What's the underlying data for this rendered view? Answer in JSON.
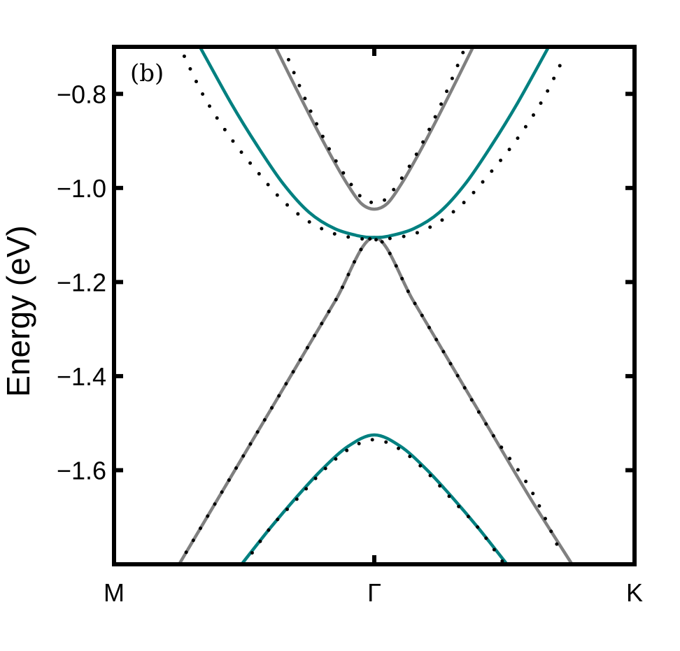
{
  "chart_data": {
    "type": "line",
    "panel_label": "(b)",
    "xlabel": "",
    "ylabel": "Energy (eV)",
    "xlim": [
      -1,
      1
    ],
    "ylim": [
      -1.8,
      -0.7
    ],
    "grid": false,
    "x_ticks": [
      {
        "x": -1,
        "label": "M"
      },
      {
        "x": 0,
        "label": "Γ"
      },
      {
        "x": 1,
        "label": "K"
      }
    ],
    "y_ticks": [
      {
        "y": -0.8,
        "label": "−0.8"
      },
      {
        "y": -1.0,
        "label": "−1.0"
      },
      {
        "y": -1.2,
        "label": "−1.2"
      },
      {
        "y": -1.4,
        "label": "−1.4"
      },
      {
        "y": -1.6,
        "label": "−1.6"
      }
    ],
    "series": [
      {
        "style": "solid",
        "color": "#808080",
        "x": [
          -0.75,
          -0.6,
          -0.45,
          -0.3,
          -0.15,
          0.0,
          0.15,
          0.3,
          0.45,
          0.6,
          0.76
        ],
        "y": [
          -1.8,
          -1.66,
          -1.52,
          -1.38,
          -1.24,
          -1.105,
          -1.24,
          -1.38,
          -1.52,
          -1.66,
          -1.8
        ]
      },
      {
        "style": "solid",
        "color": "#808080",
        "x": [
          -0.38,
          -0.3,
          -0.22,
          -0.15,
          -0.1,
          -0.05,
          0.0,
          0.05,
          0.1,
          0.15,
          0.22,
          0.3,
          0.38
        ],
        "y": [
          -0.7,
          -0.789,
          -0.876,
          -0.948,
          -0.995,
          -1.033,
          -1.045,
          -1.033,
          -0.995,
          -0.948,
          -0.876,
          -0.789,
          -0.7
        ]
      },
      {
        "style": "solid",
        "color": "#008080",
        "x": [
          -0.67,
          -0.55,
          -0.45,
          -0.35,
          -0.25,
          -0.15,
          -0.05,
          0.0,
          0.05,
          0.15,
          0.25,
          0.35,
          0.45,
          0.55,
          0.67
        ],
        "y": [
          -0.7,
          -0.82,
          -0.91,
          -0.991,
          -1.052,
          -1.087,
          -1.103,
          -1.105,
          -1.103,
          -1.087,
          -1.052,
          -0.991,
          -0.91,
          -0.82,
          -0.7
        ]
      },
      {
        "style": "solid",
        "color": "#008080",
        "x": [
          -0.51,
          -0.4,
          -0.3,
          -0.2,
          -0.1,
          0.0,
          0.1,
          0.2,
          0.3,
          0.4,
          0.51
        ],
        "y": [
          -1.8,
          -1.723,
          -1.658,
          -1.598,
          -1.549,
          -1.525,
          -1.549,
          -1.598,
          -1.658,
          -1.723,
          -1.8
        ]
      },
      {
        "style": "dotted",
        "color": "#000000",
        "x": [
          -0.73,
          -0.65,
          -0.55,
          -0.45,
          -0.35,
          -0.25,
          -0.15,
          -0.05,
          0.0,
          0.05,
          0.15,
          0.25,
          0.35,
          0.45,
          0.55,
          0.65,
          0.73
        ],
        "y": [
          -0.72,
          -0.81,
          -0.895,
          -0.965,
          -1.028,
          -1.072,
          -1.098,
          -1.108,
          -1.11,
          -1.108,
          -1.098,
          -1.072,
          -1.028,
          -0.965,
          -0.895,
          -0.81,
          -0.72
        ]
      },
      {
        "style": "dotted",
        "color": "#000000",
        "x": [
          -0.35,
          -0.25,
          -0.15,
          -0.05,
          0.0,
          0.05,
          0.15,
          0.25,
          0.35
        ],
        "y": [
          -0.7,
          -0.83,
          -0.94,
          -1.02,
          -1.03,
          -1.02,
          -0.94,
          -0.83,
          -0.7
        ]
      },
      {
        "style": "dotted",
        "color": "#000000",
        "x": [
          -0.75,
          -0.6,
          -0.45,
          -0.3,
          -0.15,
          0.0,
          0.15,
          0.3,
          0.45,
          0.6,
          0.72
        ],
        "y": [
          -1.8,
          -1.66,
          -1.52,
          -1.38,
          -1.24,
          -1.105,
          -1.24,
          -1.38,
          -1.52,
          -1.64,
          -1.78
        ]
      },
      {
        "style": "dotted",
        "color": "#000000",
        "x": [
          -0.5,
          -0.4,
          -0.3,
          -0.2,
          -0.1,
          0.0,
          0.1,
          0.2,
          0.3,
          0.4,
          0.5
        ],
        "y": [
          -1.8,
          -1.723,
          -1.663,
          -1.603,
          -1.556,
          -1.535,
          -1.556,
          -1.603,
          -1.663,
          -1.723,
          -1.8
        ]
      }
    ]
  }
}
